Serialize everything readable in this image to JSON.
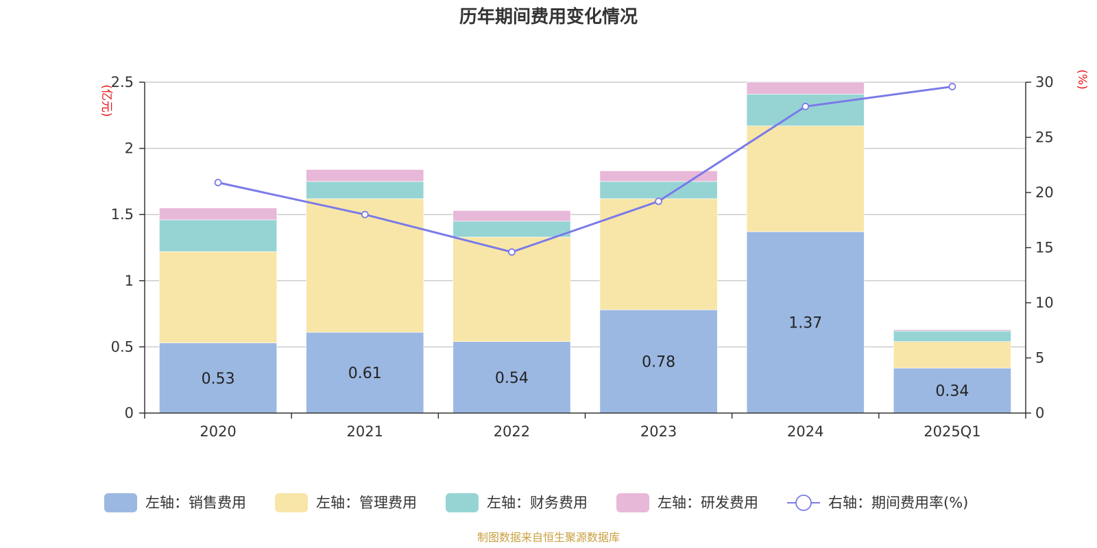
{
  "chart_data": {
    "type": "bar",
    "stacked": true,
    "title": "历年期间费用变化情况",
    "categories": [
      "2020",
      "2021",
      "2022",
      "2023",
      "2024",
      "2025Q1"
    ],
    "left_axis": {
      "unit": "(亿元)",
      "ylim": [
        0,
        2.5
      ],
      "ticks": [
        "0",
        "0.5",
        "1",
        "1.5",
        "2",
        "2.5"
      ],
      "tick_values": [
        0,
        0.5,
        1,
        1.5,
        2,
        2.5
      ]
    },
    "right_axis": {
      "unit": "(%)",
      "ylim": [
        0,
        30
      ],
      "ticks": [
        "0",
        "5",
        "10",
        "15",
        "20",
        "25",
        "30"
      ],
      "tick_values": [
        0,
        5,
        10,
        15,
        20,
        25,
        30
      ]
    },
    "series": [
      {
        "name": "左轴：销售费用",
        "axis": "left",
        "type": "bar",
        "color": "#9bb8e2",
        "values": [
          0.53,
          0.61,
          0.54,
          0.78,
          1.37,
          0.34
        ],
        "labels": [
          "0.53",
          "0.61",
          "0.54",
          "0.78",
          "1.37",
          "0.34"
        ]
      },
      {
        "name": "左轴：管理费用",
        "axis": "left",
        "type": "bar",
        "color": "#f8e6a8",
        "values": [
          0.69,
          1.01,
          0.79,
          0.84,
          0.8,
          0.2
        ]
      },
      {
        "name": "左轴：财务费用",
        "axis": "left",
        "type": "bar",
        "color": "#96d4d4",
        "values": [
          0.24,
          0.13,
          0.12,
          0.13,
          0.24,
          0.08
        ]
      },
      {
        "name": "左轴：研发费用",
        "axis": "left",
        "type": "bar",
        "color": "#e8b8d8",
        "values": [
          0.09,
          0.09,
          0.08,
          0.08,
          0.09,
          0.01
        ]
      },
      {
        "name": "右轴：期间费用率(%)",
        "axis": "right",
        "type": "line",
        "color": "#7a7ae8",
        "values": [
          20.9,
          18.0,
          14.6,
          19.2,
          27.8,
          29.6
        ]
      }
    ],
    "grid": true,
    "legend": "bottom",
    "source": "制图数据来自恒生聚源数据库"
  }
}
